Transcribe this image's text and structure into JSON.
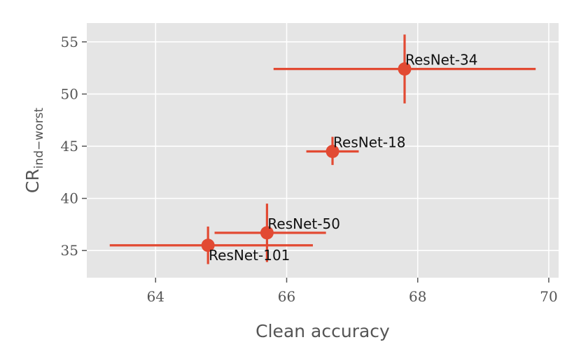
{
  "chart_data": {
    "type": "scatter",
    "title": "",
    "xlabel": "Clean accuracy",
    "ylabel": "CR",
    "ylabel_subscript": "ind−worst",
    "xlim": [
      62.95,
      70.15
    ],
    "ylim": [
      32.4,
      56.8
    ],
    "xticks": [
      64,
      66,
      68,
      70
    ],
    "yticks": [
      35,
      40,
      45,
      50,
      55
    ],
    "grid": true,
    "color": "#E24A33",
    "background": "#E5E5E5",
    "points": [
      {
        "label": "ResNet-34",
        "x": 67.8,
        "y": 52.4,
        "xerr": [
          65.8,
          69.8
        ],
        "yerr": [
          49.1,
          55.7
        ],
        "label_pos": "above-right"
      },
      {
        "label": "ResNet-18",
        "x": 66.7,
        "y": 44.5,
        "xerr": [
          66.3,
          67.1
        ],
        "yerr": [
          43.2,
          45.9
        ],
        "label_pos": "above-right"
      },
      {
        "label": "ResNet-50",
        "x": 65.7,
        "y": 36.7,
        "xerr": [
          64.9,
          66.6
        ],
        "yerr": [
          33.9,
          39.5
        ],
        "label_pos": "above-right"
      },
      {
        "label": "ResNet-101",
        "x": 64.8,
        "y": 35.5,
        "xerr": [
          63.3,
          66.4
        ],
        "yerr": [
          33.7,
          37.3
        ],
        "label_pos": "below-right"
      }
    ]
  }
}
